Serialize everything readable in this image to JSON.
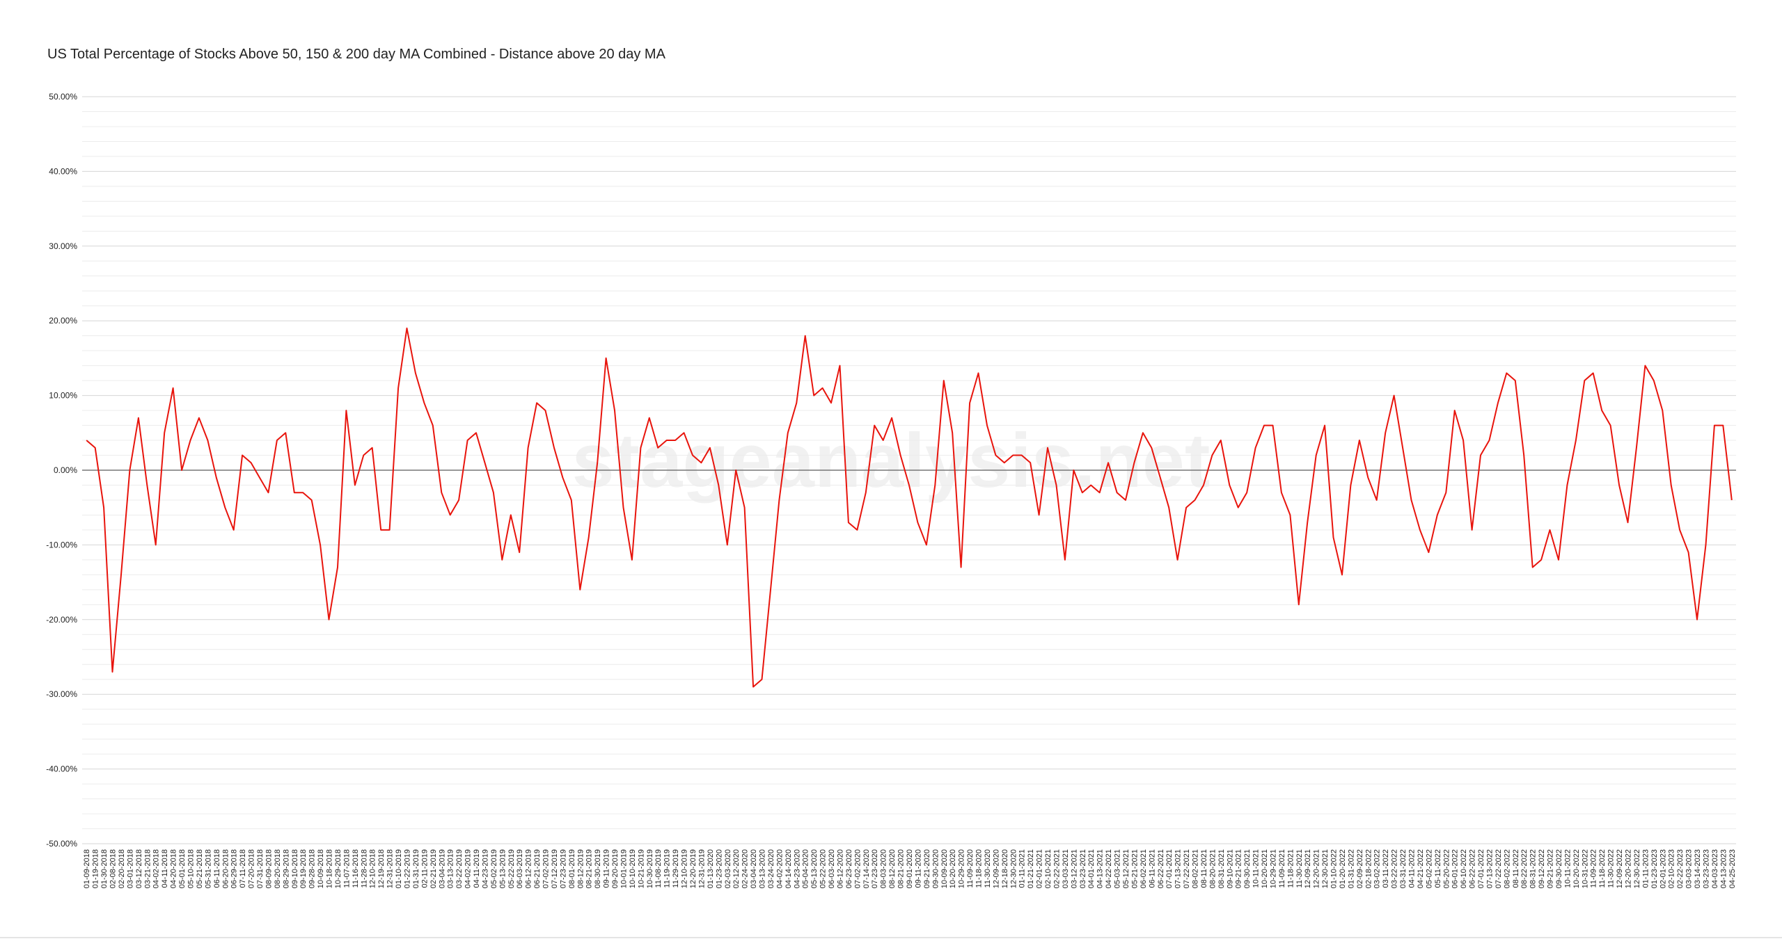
{
  "chart_data": {
    "type": "line",
    "title": "US Total Percentage of Stocks Above 50, 150 & 200 day MA Combined - Distance above 20 day MA",
    "watermark": "stageanalysis.net",
    "categories": [
      "01-09-2018",
      "01-19-2018",
      "01-30-2018",
      "02-08-2018",
      "02-20-2018",
      "03-01-2018",
      "03-12-2018",
      "03-21-2018",
      "04-02-2018",
      "04-11-2018",
      "04-20-2018",
      "05-01-2018",
      "05-10-2018",
      "05-21-2018",
      "05-31-2018",
      "06-11-2018",
      "06-20-2018",
      "06-29-2018",
      "07-11-2018",
      "07-20-2018",
      "07-31-2018",
      "08-09-2018",
      "08-20-2018",
      "08-29-2018",
      "09-10-2018",
      "09-19-2018",
      "09-28-2018",
      "10-09-2018",
      "10-18-2018",
      "10-29-2018",
      "11-07-2018",
      "11-16-2018",
      "11-28-2018",
      "12-10-2018",
      "12-19-2018",
      "12-31-2018",
      "01-10-2019",
      "01-22-2019",
      "01-31-2019",
      "02-11-2019",
      "02-21-2019",
      "03-04-2019",
      "03-13-2019",
      "03-22-2019",
      "04-02-2019",
      "04-11-2019",
      "04-23-2019",
      "05-02-2019",
      "05-13-2019",
      "05-22-2019",
      "06-03-2019",
      "06-12-2019",
      "06-21-2019",
      "07-02-2019",
      "07-12-2019",
      "07-23-2019",
      "08-01-2019",
      "08-12-2019",
      "08-21-2019",
      "08-30-2019",
      "09-11-2019",
      "09-20-2019",
      "10-01-2019",
      "10-10-2019",
      "10-21-2019",
      "10-30-2019",
      "11-08-2019",
      "11-19-2019",
      "11-29-2019",
      "12-10-2019",
      "12-20-2019",
      "12-31-2019",
      "01-13-2020",
      "01-23-2020",
      "02-03-2020",
      "02-12-2020",
      "02-24-2020",
      "03-04-2020",
      "03-13-2020",
      "03-24-2020",
      "04-02-2020",
      "04-14-2020",
      "04-23-2020",
      "05-04-2020",
      "05-13-2020",
      "05-22-2020",
      "06-03-2020",
      "06-12-2020",
      "06-23-2020",
      "07-02-2020",
      "07-14-2020",
      "07-23-2020",
      "08-03-2020",
      "08-12-2020",
      "08-21-2020",
      "09-01-2020",
      "09-11-2020",
      "09-21-2020",
      "09-30-2020",
      "10-09-2020",
      "10-20-2020",
      "10-29-2020",
      "11-09-2020",
      "11-18-2020",
      "11-30-2020",
      "12-09-2020",
      "12-18-2020",
      "12-30-2020",
      "01-11-2021",
      "01-21-2021",
      "02-01-2021",
      "02-10-2021",
      "02-22-2021",
      "03-03-2021",
      "03-12-2021",
      "03-23-2021",
      "04-01-2021",
      "04-13-2021",
      "04-22-2021",
      "05-03-2021",
      "05-12-2021",
      "05-21-2021",
      "06-02-2021",
      "06-11-2021",
      "06-22-2021",
      "07-01-2021",
      "07-13-2021",
      "07-22-2021",
      "08-02-2021",
      "08-11-2021",
      "08-20-2021",
      "08-31-2021",
      "09-10-2021",
      "09-21-2021",
      "09-30-2021",
      "10-11-2021",
      "10-20-2021",
      "10-29-2021",
      "11-09-2021",
      "11-18-2021",
      "11-30-2021",
      "12-09-2021",
      "12-20-2021",
      "12-30-2021",
      "01-10-2022",
      "01-20-2022",
      "01-31-2022",
      "02-09-2022",
      "02-18-2022",
      "03-02-2022",
      "03-11-2022",
      "03-22-2022",
      "03-31-2022",
      "04-11-2022",
      "04-21-2022",
      "05-02-2022",
      "05-11-2022",
      "05-20-2022",
      "06-01-2022",
      "06-10-2022",
      "06-22-2022",
      "07-01-2022",
      "07-13-2022",
      "07-22-2022",
      "08-02-2022",
      "08-11-2022",
      "08-22-2022",
      "08-31-2022",
      "09-12-2022",
      "09-21-2022",
      "09-30-2022",
      "10-11-2022",
      "10-20-2022",
      "10-31-2022",
      "11-09-2022",
      "11-18-2022",
      "11-30-2022",
      "12-09-2022",
      "12-20-2022",
      "12-30-2022",
      "01-11-2023",
      "01-23-2023",
      "02-01-2023",
      "02-10-2023",
      "02-22-2023",
      "03-03-2023",
      "03-14-2023",
      "03-23-2023",
      "04-03-2023",
      "04-13-2023",
      "04-25-2023"
    ],
    "values": [
      4,
      3,
      -5,
      -27,
      -14,
      0,
      7,
      -2,
      -10,
      5,
      11,
      0,
      4,
      7,
      4,
      -1,
      -5,
      -8,
      2,
      1,
      -1,
      -3,
      4,
      5,
      -3,
      -3,
      -4,
      -10,
      -20,
      -13,
      8,
      -2,
      2,
      3,
      -8,
      -8,
      11,
      19,
      13,
      9,
      6,
      -3,
      -6,
      -4,
      4,
      5,
      1,
      -3,
      -12,
      -6,
      -11,
      3,
      9,
      8,
      3,
      -1,
      -4,
      -16,
      -9,
      1,
      15,
      8,
      -5,
      -12,
      3,
      7,
      3,
      4,
      4,
      5,
      2,
      1,
      3,
      -2,
      -10,
      0,
      -5,
      -29,
      -28,
      -16,
      -4,
      5,
      9,
      18,
      10,
      11,
      9,
      14,
      -7,
      -8,
      -3,
      6,
      4,
      7,
      2,
      -2,
      -7,
      -10,
      -2,
      12,
      5,
      -13,
      9,
      13,
      6,
      2,
      1,
      2,
      2,
      1,
      -6,
      3,
      -2,
      -12,
      0,
      -3,
      -2,
      -3,
      1,
      -3,
      -4,
      1,
      5,
      3,
      -1,
      -5,
      -12,
      -5,
      -4,
      -2,
      2,
      4,
      -2,
      -5,
      -3,
      3,
      6,
      6,
      -3,
      -6,
      -18,
      -7,
      2,
      6,
      -9,
      -14,
      -2,
      4,
      -1,
      -4,
      5,
      10,
      3,
      -4,
      -8,
      -11,
      -6,
      -3,
      8,
      4,
      -8,
      2,
      4,
      9,
      13,
      12,
      2,
      -13,
      -12,
      -8,
      -12,
      -2,
      4,
      12,
      13,
      8,
      6,
      -2,
      -7,
      3,
      14,
      12,
      8,
      -2,
      -8,
      -11,
      -20,
      -10,
      6,
      6,
      -4
    ],
    "color": "#e8140c",
    "ylim": [
      -50,
      50
    ],
    "yticks": [
      {
        "value": -50,
        "label": "-50.00%"
      },
      {
        "value": -40,
        "label": "-40.00%"
      },
      {
        "value": -30,
        "label": "-30.00%"
      },
      {
        "value": -20,
        "label": "-20.00%"
      },
      {
        "value": -10,
        "label": "-10.00%"
      },
      {
        "value": 0,
        "label": "0.00%"
      },
      {
        "value": 10,
        "label": "10.00%"
      },
      {
        "value": 20,
        "label": "20.00%"
      },
      {
        "value": 30,
        "label": "30.00%"
      },
      {
        "value": 40,
        "label": "40.00%"
      },
      {
        "value": 50,
        "label": "50.00%"
      }
    ],
    "yminorticks": [
      -48,
      -46,
      -44,
      -42,
      -38,
      -36,
      -34,
      -32,
      -28,
      -26,
      -24,
      -22,
      -18,
      -16,
      -14,
      -12,
      -8,
      -6,
      -4,
      -2,
      2,
      4,
      6,
      8,
      12,
      14,
      16,
      18,
      22,
      24,
      26,
      28,
      32,
      34,
      36,
      38,
      42,
      44,
      46,
      48
    ],
    "grid": true
  }
}
